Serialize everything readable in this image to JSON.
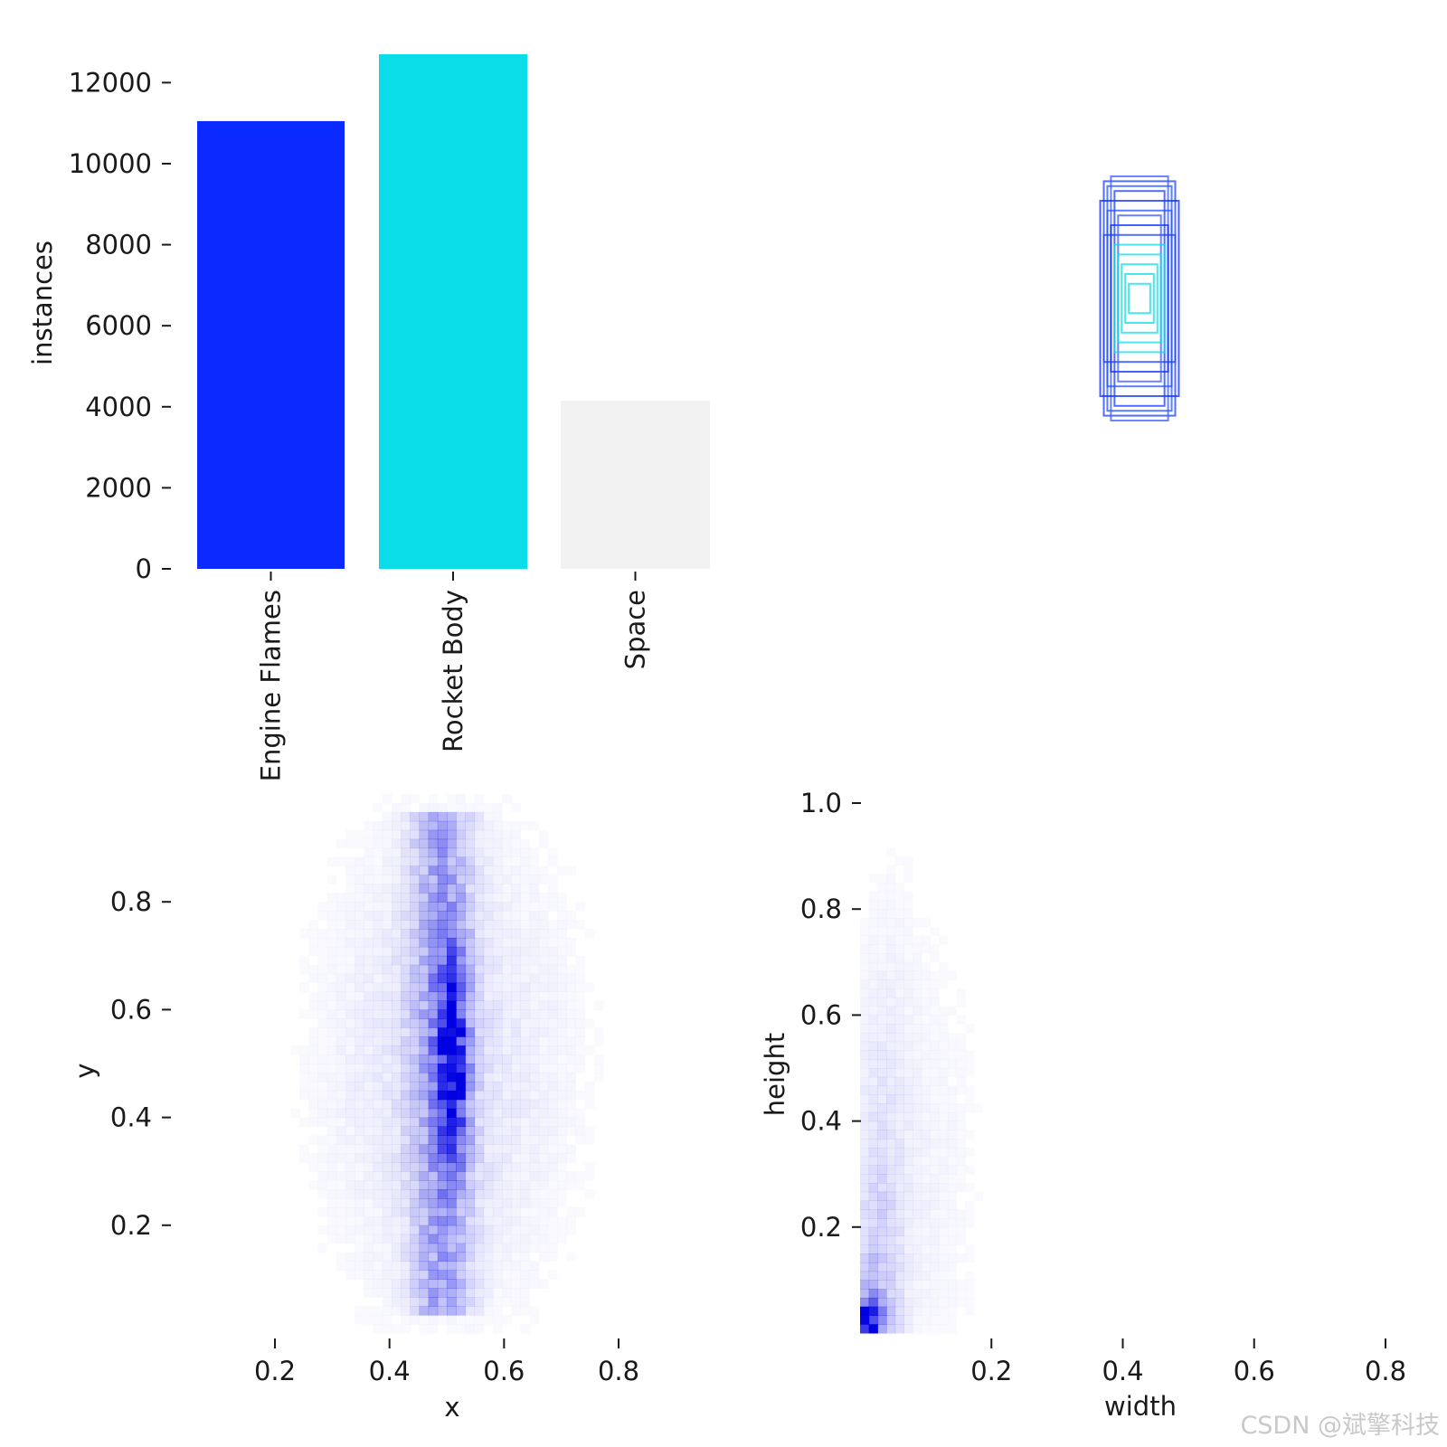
{
  "chart_data": [
    {
      "type": "bar",
      "categories": [
        "Engine Flames",
        "Rocket Body",
        "Space"
      ],
      "values": [
        11050,
        12700,
        4150
      ],
      "colors": [
        "#0a2aff",
        "#0bdde8",
        "#f2f2f2"
      ],
      "ylabel": "instances",
      "ylim": [
        0,
        12700
      ],
      "yticks": [
        0,
        2000,
        4000,
        6000,
        8000,
        10000,
        12000
      ],
      "ytick_labels": [
        "0",
        "2000",
        "4000",
        "6000",
        "8000",
        "10000",
        "12000"
      ],
      "grid": false
    },
    {
      "type": "scatter",
      "description_role": "overlay of normalized bounding boxes centered at (0.5, 0.5)",
      "boxes": [
        {
          "w": 0.1,
          "h": 0.48,
          "color": "#1a3cff"
        },
        {
          "w": 0.09,
          "h": 0.46,
          "color": "#2255ff"
        },
        {
          "w": 0.08,
          "h": 0.5,
          "color": "#3b5bff"
        },
        {
          "w": 0.11,
          "h": 0.4,
          "color": "#0a2aff"
        },
        {
          "w": 0.07,
          "h": 0.44,
          "color": "#1a3cff"
        },
        {
          "w": 0.09,
          "h": 0.36,
          "color": "#2255ff"
        },
        {
          "w": 0.08,
          "h": 0.3,
          "color": "#0a2aff"
        },
        {
          "w": 0.1,
          "h": 0.26,
          "color": "#1a3cff"
        },
        {
          "w": 0.06,
          "h": 0.34,
          "color": "#3b5bff"
        },
        {
          "w": 0.07,
          "h": 0.22,
          "color": "#0bdde8"
        },
        {
          "w": 0.06,
          "h": 0.18,
          "color": "#0bdde8"
        },
        {
          "w": 0.05,
          "h": 0.14,
          "color": "#0bdde8"
        },
        {
          "w": 0.04,
          "h": 0.1,
          "color": "#0bdde8"
        },
        {
          "w": 0.03,
          "h": 0.06,
          "color": "#0bdde8"
        },
        {
          "w": 0.02,
          "h": 0.03,
          "color": "#ffffff"
        }
      ]
    },
    {
      "type": "heatmap",
      "xlabel": "x",
      "ylabel": "y",
      "xlim": [
        0.05,
        0.95
      ],
      "ylim": [
        0.0,
        1.0
      ],
      "xticks": [
        0.2,
        0.4,
        0.6,
        0.8
      ],
      "xtick_labels": [
        "0.2",
        "0.4",
        "0.6",
        "0.8"
      ],
      "yticks": [
        0.2,
        0.4,
        0.6,
        0.8
      ],
      "ytick_labels": [
        "0.2",
        "0.4",
        "0.6",
        "0.8"
      ],
      "cmap_color": "#0000e0",
      "peak": {
        "x": 0.51,
        "y": 0.51
      },
      "grid": false
    },
    {
      "type": "heatmap",
      "xlabel": "width",
      "ylabel": "height",
      "xlim": [
        0.0,
        0.8
      ],
      "ylim": [
        0.0,
        1.0
      ],
      "xticks": [
        0.2,
        0.4,
        0.6,
        0.8
      ],
      "xtick_labels": [
        "0.2",
        "0.4",
        "0.6",
        "0.8"
      ],
      "yticks": [
        0.2,
        0.4,
        0.6,
        0.8,
        1.0
      ],
      "ytick_labels": [
        "0.2",
        "0.4",
        "0.6",
        "0.8",
        "1.0"
      ],
      "cmap_color": "#0000e0",
      "peak": {
        "x": 0.01,
        "y": 0.02
      },
      "grid": false
    }
  ],
  "watermark": "CSDN @斌擎科技"
}
